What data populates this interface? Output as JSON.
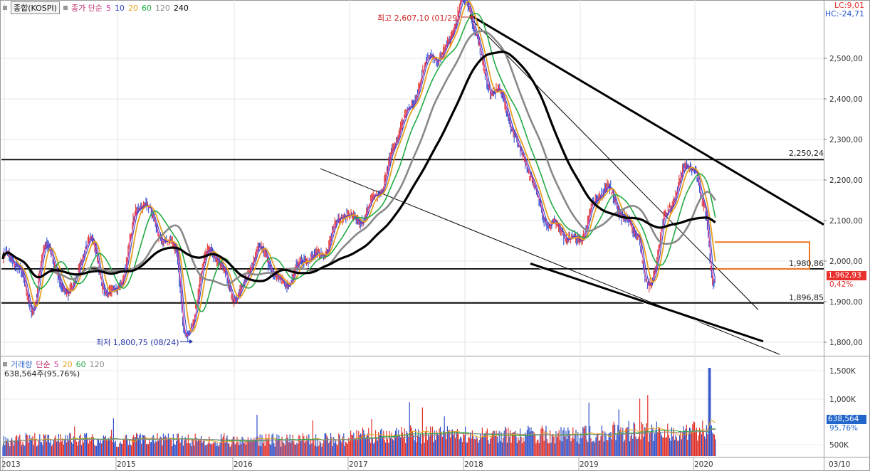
{
  "header": {
    "index_label": "종합(KOSPI)",
    "ma_label": "종가 단순",
    "ma_periods": [
      "5",
      "10",
      "20",
      "60",
      "120",
      "240"
    ],
    "ma_colors": [
      "#cc3399",
      "#3344cc",
      "#e8a020",
      "#22aa44",
      "#888888",
      "#000000"
    ],
    "lc_text": "LC:9,01",
    "hc_text": "HC:-24,71"
  },
  "volume_header": {
    "label": "거래량",
    "ma_label": "단순",
    "ma_periods": [
      "5",
      "20",
      "60",
      "120"
    ],
    "current_text": "638,564주(95,76%)"
  },
  "annotations": {
    "high": "최고 2,607,10 (01/29)",
    "low": "최저 1,800,75 (08/24)",
    "level_2250": "2,250,24",
    "level_1980": "1,980,86",
    "level_1896": "1,896,85"
  },
  "price_tags": {
    "current": "1,962,93",
    "change": "0,42%",
    "current_color": "#e8302c"
  },
  "volume_tags": {
    "current": "638,564",
    "ratio": "95,76%",
    "current_color": "#2266cc"
  },
  "chart_data": [
    {
      "type": "line",
      "name": "KOSPI daily price (close, approximate)",
      "x": [
        "2013-01",
        "2013-04",
        "2013-07",
        "2013-10",
        "2014-01",
        "2014-04",
        "2014-07",
        "2014-10",
        "2015-01",
        "2015-04",
        "2015-07",
        "2015-08",
        "2015-10",
        "2016-01",
        "2016-04",
        "2016-07",
        "2016-10",
        "2017-01",
        "2017-04",
        "2017-07",
        "2017-10",
        "2018-01",
        "2018-04",
        "2018-07",
        "2018-10",
        "2019-01",
        "2019-04",
        "2019-07",
        "2019-08",
        "2019-10",
        "2020-01",
        "2020-02",
        "2020-03"
      ],
      "y": [
        1990,
        1950,
        1880,
        2020,
        1940,
        2000,
        2070,
        1940,
        1930,
        2120,
        2040,
        1830,
        2030,
        1900,
        2000,
        1990,
        2030,
        2070,
        2170,
        2410,
        2480,
        2600,
        2460,
        2280,
        2040,
        2060,
        2220,
        2050,
        1920,
        2080,
        2260,
        2160,
        1963
      ],
      "ylim": [
        1760,
        2620
      ],
      "x_ticks": [
        "2013",
        "2015",
        "2016",
        "2017",
        "2018",
        "2019",
        "2020",
        "03/10"
      ],
      "y_ticks": [
        1800,
        1900,
        2000,
        2100,
        2200,
        2300,
        2400,
        2500
      ],
      "horizontal_levels": [
        2250.24,
        1980.86,
        1896.85
      ],
      "high": {
        "date": "01/29",
        "value": 2607.1
      },
      "low": {
        "date": "08/24",
        "value": 1800.75
      }
    },
    {
      "type": "bar",
      "name": "거래량",
      "y_ticks": [
        "500K",
        "1,000K",
        "1,500K"
      ],
      "last_value": 638564,
      "last_ratio_pct": 95.76,
      "max_spike": 1550000
    }
  ]
}
